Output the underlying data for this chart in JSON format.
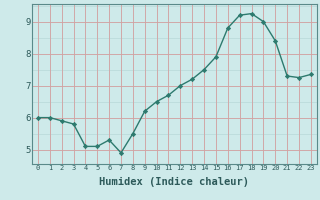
{
  "x": [
    0,
    1,
    2,
    3,
    4,
    5,
    6,
    7,
    8,
    9,
    10,
    11,
    12,
    13,
    14,
    15,
    16,
    17,
    18,
    19,
    20,
    21,
    22,
    23
  ],
  "y": [
    6.0,
    6.0,
    5.9,
    5.8,
    5.1,
    5.1,
    5.3,
    4.9,
    5.5,
    6.2,
    6.5,
    6.7,
    7.0,
    7.2,
    7.5,
    7.9,
    8.8,
    9.2,
    9.25,
    9.0,
    8.4,
    7.3,
    7.25,
    7.35
  ],
  "line_color": "#2d7a6e",
  "marker": "D",
  "marker_size": 2.2,
  "bg_color": "#ceeaea",
  "red_grid_color": "#d4a0a0",
  "white_grid_color": "#b8d8d8",
  "xlabel": "Humidex (Indice chaleur)",
  "xlabel_fontsize": 7.5,
  "ylabel_ticks": [
    5,
    6,
    7,
    8,
    9
  ],
  "xtick_labels": [
    "0",
    "1",
    "2",
    "3",
    "4",
    "5",
    "6",
    "7",
    "8",
    "9",
    "10",
    "11",
    "12",
    "13",
    "14",
    "15",
    "16",
    "17",
    "18",
    "19",
    "20",
    "21",
    "22",
    "23"
  ],
  "ylim": [
    4.55,
    9.55
  ],
  "xlim": [
    -0.5,
    23.5
  ]
}
